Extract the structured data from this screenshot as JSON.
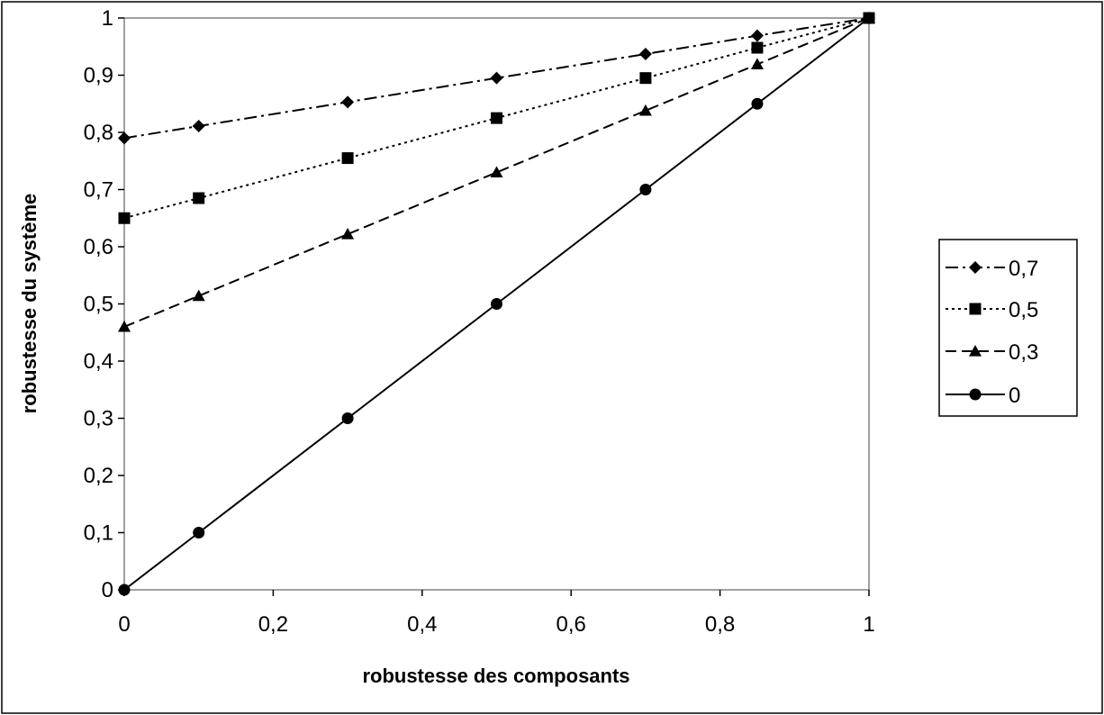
{
  "chart_data": {
    "type": "line",
    "xlabel": "robustesse des composants",
    "ylabel": "robustesse du système",
    "xlim": [
      0,
      1
    ],
    "ylim": [
      0,
      1
    ],
    "x_ticks": [
      0,
      0.2,
      0.4,
      0.6,
      0.8,
      1
    ],
    "x_tick_labels": [
      "0",
      "0,2",
      "0,4",
      "0,6",
      "0,8",
      "1"
    ],
    "y_ticks": [
      0,
      0.1,
      0.2,
      0.3,
      0.4,
      0.5,
      0.6,
      0.7,
      0.8,
      0.9,
      1
    ],
    "y_tick_labels": [
      "0",
      "0,1",
      "0,2",
      "0,3",
      "0,4",
      "0,5",
      "0,6",
      "0,7",
      "0,8",
      "0,9",
      "1"
    ],
    "grid": false,
    "legend_position": "right",
    "x": [
      0,
      0.1,
      0.3,
      0.5,
      0.7,
      0.85,
      1
    ],
    "series": [
      {
        "name": "0,7",
        "values": [
          0.79,
          0.811,
          0.853,
          0.895,
          0.937,
          0.969,
          1
        ],
        "marker": "diamond",
        "dash": "dash-dot"
      },
      {
        "name": "0,5",
        "values": [
          0.65,
          0.685,
          0.755,
          0.825,
          0.895,
          0.948,
          1
        ],
        "marker": "square",
        "dash": "dotted"
      },
      {
        "name": "0,3",
        "values": [
          0.46,
          0.514,
          0.622,
          0.73,
          0.838,
          0.919,
          1
        ],
        "marker": "triangle",
        "dash": "dashed"
      },
      {
        "name": "0",
        "values": [
          0,
          0.1,
          0.3,
          0.5,
          0.7,
          0.85,
          1
        ],
        "marker": "circle",
        "dash": "solid"
      }
    ],
    "colors": {
      "line": "#000000",
      "background": "#ffffff",
      "frame": "#000000"
    }
  }
}
